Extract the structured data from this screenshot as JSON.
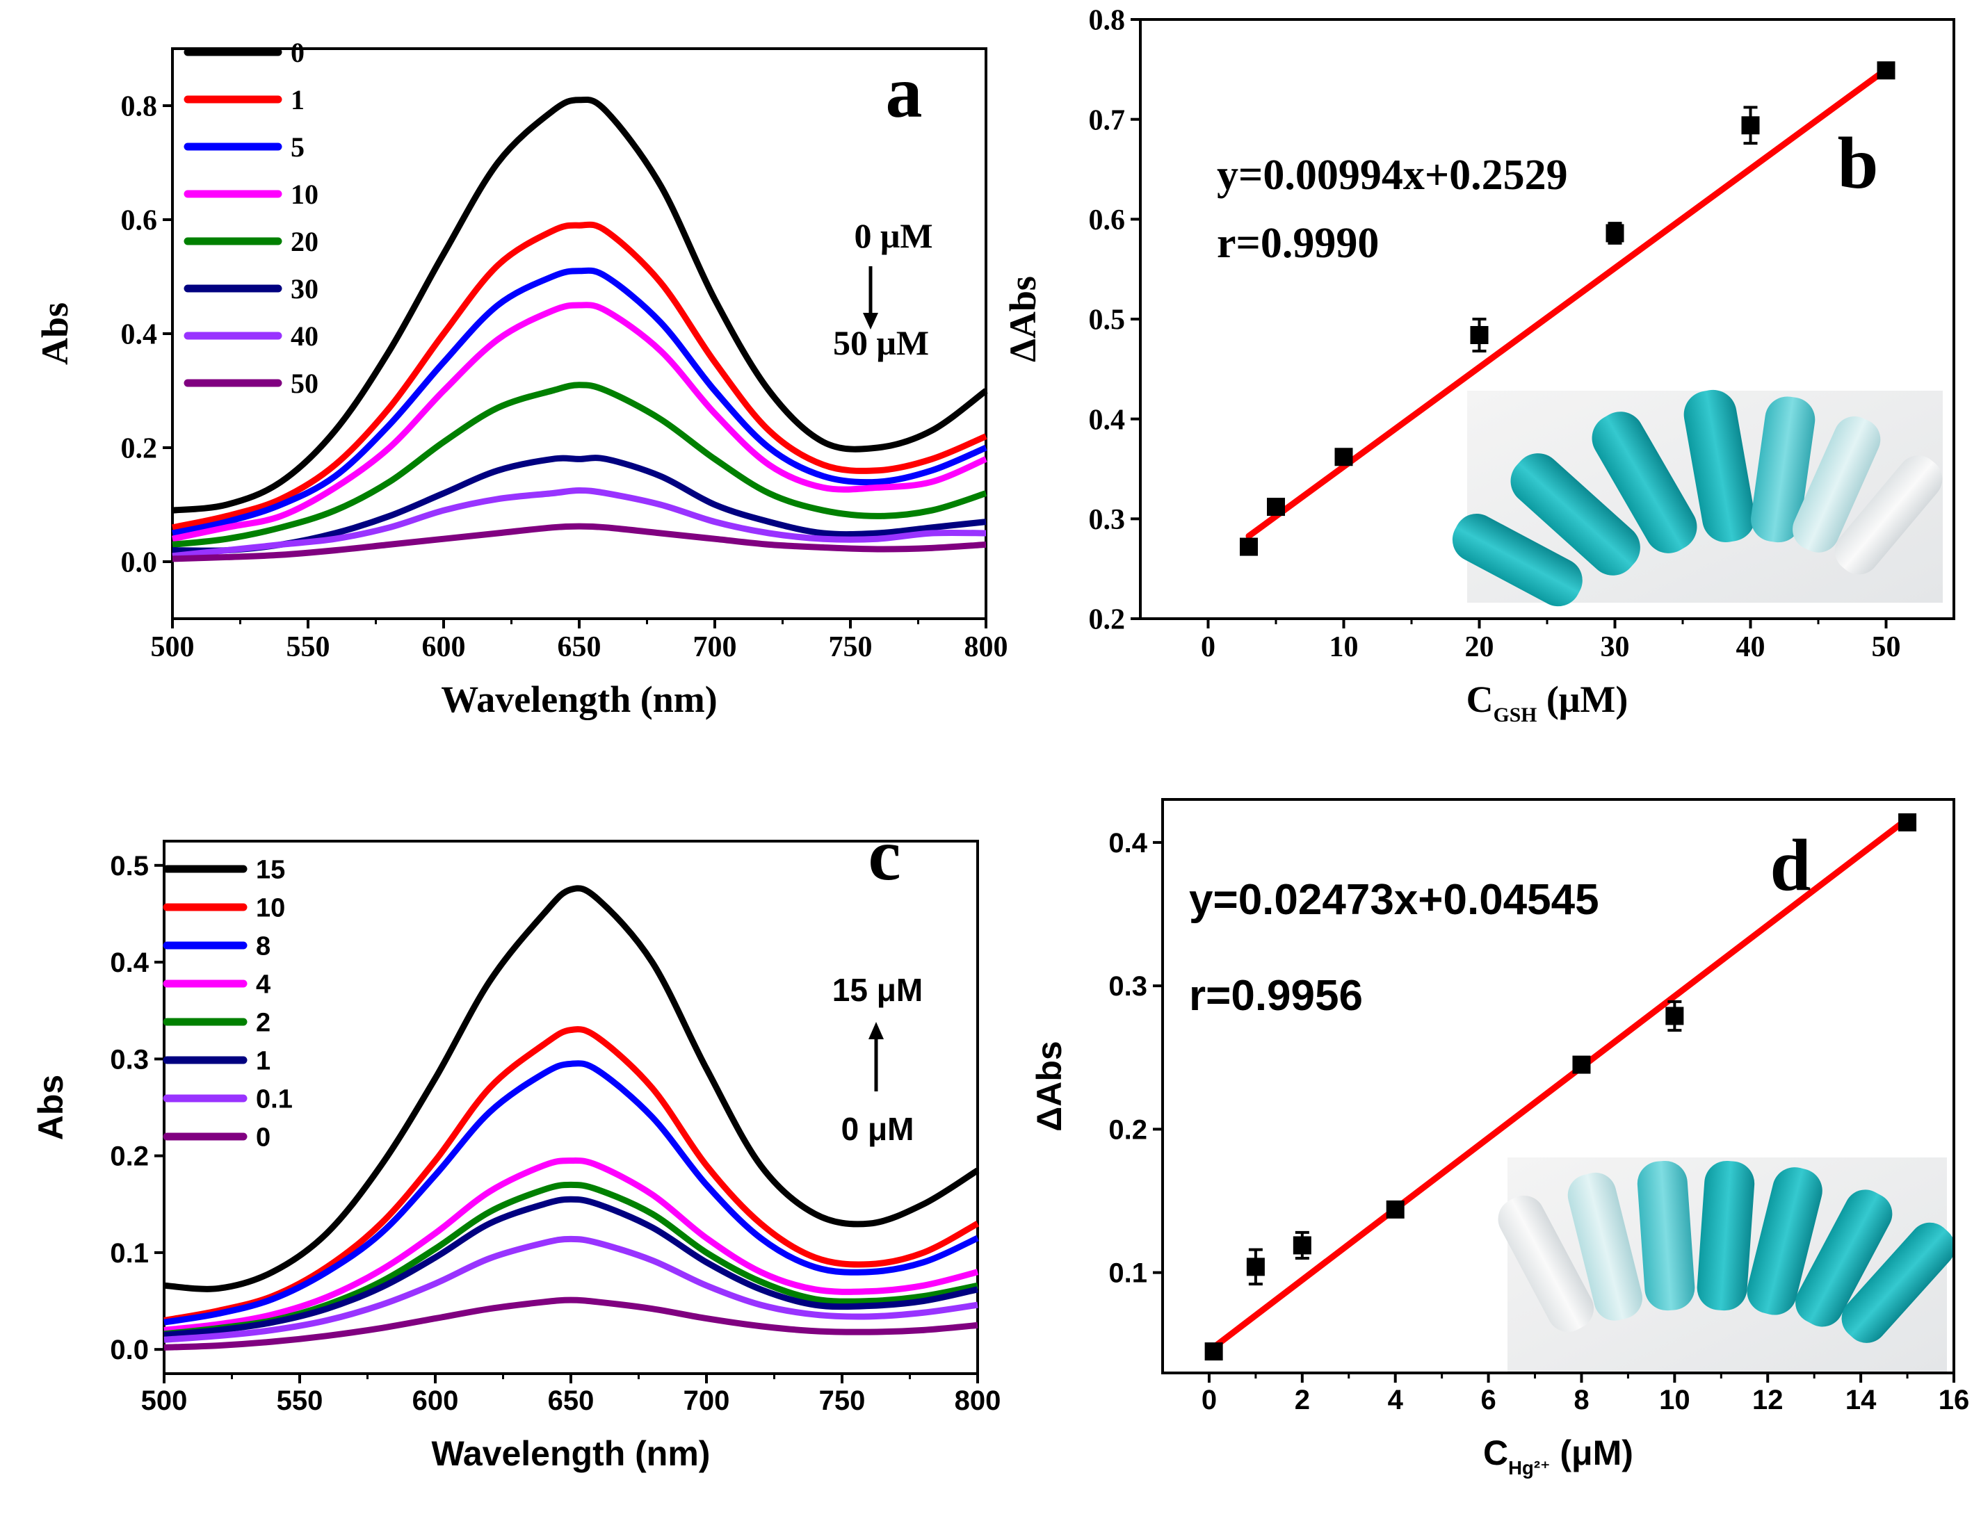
{
  "chart_data": [
    {
      "panel": "a",
      "type": "line",
      "xlabel": "Wavelength (nm)",
      "ylabel": "Abs",
      "xlim": [
        500,
        800
      ],
      "ylim": [
        -0.1,
        0.9
      ],
      "xticks": [
        "500",
        "550",
        "600",
        "650",
        "700",
        "750",
        "800"
      ],
      "yticks": [
        "0.0",
        "0.2",
        "0.4",
        "0.6",
        "0.8"
      ],
      "legend_position": "top-left",
      "annotation_top": "0 μM",
      "annotation_bottom": "50 μM",
      "arrow_direction": "down",
      "series": [
        {
          "name": "0",
          "color": "#000000",
          "x": [
            500,
            520,
            540,
            560,
            580,
            600,
            620,
            640,
            650,
            660,
            680,
            700,
            720,
            740,
            760,
            780,
            800
          ],
          "values": [
            0.09,
            0.1,
            0.14,
            0.23,
            0.37,
            0.54,
            0.7,
            0.79,
            0.81,
            0.79,
            0.66,
            0.46,
            0.3,
            0.21,
            0.2,
            0.23,
            0.3
          ]
        },
        {
          "name": "1",
          "color": "#ff0000",
          "x": [
            500,
            520,
            540,
            560,
            580,
            600,
            620,
            640,
            650,
            660,
            680,
            700,
            720,
            740,
            760,
            780,
            800
          ],
          "values": [
            0.06,
            0.08,
            0.11,
            0.17,
            0.27,
            0.4,
            0.52,
            0.58,
            0.59,
            0.58,
            0.49,
            0.35,
            0.23,
            0.17,
            0.16,
            0.18,
            0.22
          ]
        },
        {
          "name": "5",
          "color": "#0000ff",
          "x": [
            500,
            520,
            540,
            560,
            580,
            600,
            620,
            640,
            650,
            660,
            680,
            700,
            720,
            740,
            760,
            780,
            800
          ],
          "values": [
            0.05,
            0.07,
            0.1,
            0.15,
            0.24,
            0.35,
            0.45,
            0.5,
            0.51,
            0.5,
            0.42,
            0.3,
            0.2,
            0.15,
            0.14,
            0.16,
            0.2
          ]
        },
        {
          "name": "10",
          "color": "#ff00ff",
          "x": [
            500,
            520,
            540,
            560,
            580,
            600,
            620,
            640,
            650,
            660,
            680,
            700,
            720,
            740,
            760,
            780,
            800
          ],
          "values": [
            0.04,
            0.06,
            0.08,
            0.13,
            0.2,
            0.3,
            0.39,
            0.44,
            0.45,
            0.44,
            0.37,
            0.26,
            0.17,
            0.13,
            0.13,
            0.14,
            0.18
          ]
        },
        {
          "name": "20",
          "color": "#008000",
          "x": [
            500,
            520,
            540,
            560,
            580,
            600,
            620,
            640,
            650,
            660,
            680,
            700,
            720,
            740,
            760,
            780,
            800
          ],
          "values": [
            0.03,
            0.04,
            0.06,
            0.09,
            0.14,
            0.21,
            0.27,
            0.3,
            0.31,
            0.3,
            0.25,
            0.18,
            0.12,
            0.09,
            0.08,
            0.09,
            0.12
          ]
        },
        {
          "name": "30",
          "color": "#000080",
          "x": [
            500,
            520,
            540,
            560,
            580,
            600,
            620,
            640,
            650,
            660,
            680,
            700,
            720,
            740,
            760,
            780,
            800
          ],
          "values": [
            0.02,
            0.02,
            0.03,
            0.05,
            0.08,
            0.12,
            0.16,
            0.18,
            0.18,
            0.18,
            0.15,
            0.1,
            0.07,
            0.05,
            0.05,
            0.06,
            0.07
          ]
        },
        {
          "name": "40",
          "color": "#9933ff",
          "x": [
            500,
            520,
            540,
            560,
            580,
            600,
            620,
            640,
            650,
            660,
            680,
            700,
            720,
            740,
            760,
            780,
            800
          ],
          "values": [
            0.01,
            0.02,
            0.03,
            0.04,
            0.06,
            0.09,
            0.11,
            0.12,
            0.125,
            0.12,
            0.1,
            0.07,
            0.05,
            0.04,
            0.04,
            0.05,
            0.05
          ]
        },
        {
          "name": "50",
          "color": "#800080",
          "x": [
            500,
            520,
            540,
            560,
            580,
            600,
            620,
            640,
            650,
            660,
            680,
            700,
            720,
            740,
            760,
            780,
            800
          ],
          "values": [
            0.005,
            0.008,
            0.012,
            0.02,
            0.03,
            0.04,
            0.05,
            0.06,
            0.062,
            0.06,
            0.05,
            0.04,
            0.03,
            0.025,
            0.022,
            0.024,
            0.03
          ]
        }
      ]
    },
    {
      "panel": "b",
      "type": "scatter",
      "xlabel_main": "C",
      "xlabel_sub": "GSH",
      "xlabel_unit": " (μM)",
      "ylabel": "ΔAbs",
      "xlim": [
        -5,
        55
      ],
      "ylim": [
        0.2,
        0.8
      ],
      "xticks": [
        "0",
        "10",
        "20",
        "30",
        "40",
        "50"
      ],
      "yticks": [
        "0.2",
        "0.3",
        "0.4",
        "0.5",
        "0.6",
        "0.7",
        "0.8"
      ],
      "equation": "y=0.00994x+0.2529",
      "r_value": "r=0.9990",
      "fit": {
        "slope": 0.00994,
        "intercept": 0.2529,
        "x_range": [
          3,
          50
        ],
        "color": "#ff0000"
      },
      "points": {
        "x": [
          3,
          5,
          10,
          20,
          30,
          40,
          50
        ],
        "y": [
          0.272,
          0.312,
          0.362,
          0.484,
          0.586,
          0.694,
          0.749
        ],
        "err": [
          0.006,
          0.006,
          0.006,
          0.016,
          0.01,
          0.018,
          0.006
        ]
      },
      "inset": "photo-of-tubes"
    },
    {
      "panel": "c",
      "type": "line",
      "xlabel": "Wavelength (nm)",
      "ylabel": "Abs",
      "xlim": [
        500,
        800
      ],
      "ylim": [
        -0.025,
        0.525
      ],
      "xticks": [
        "500",
        "550",
        "600",
        "650",
        "700",
        "750",
        "800"
      ],
      "yticks": [
        "0.0",
        "0.1",
        "0.2",
        "0.3",
        "0.4",
        "0.5"
      ],
      "legend_position": "top-left",
      "annotation_top": "15 μM",
      "annotation_bottom": "0 μM",
      "arrow_direction": "up",
      "series": [
        {
          "name": "15",
          "color": "#000000",
          "x": [
            500,
            520,
            540,
            560,
            580,
            600,
            620,
            640,
            650,
            660,
            680,
            700,
            720,
            740,
            760,
            780,
            800
          ],
          "values": [
            0.066,
            0.063,
            0.08,
            0.12,
            0.19,
            0.28,
            0.38,
            0.45,
            0.475,
            0.465,
            0.4,
            0.29,
            0.19,
            0.14,
            0.13,
            0.15,
            0.185
          ]
        },
        {
          "name": "10",
          "color": "#ff0000",
          "x": [
            500,
            520,
            540,
            560,
            580,
            600,
            620,
            640,
            650,
            660,
            680,
            700,
            720,
            740,
            760,
            780,
            800
          ],
          "values": [
            0.03,
            0.04,
            0.055,
            0.085,
            0.13,
            0.195,
            0.27,
            0.315,
            0.33,
            0.322,
            0.27,
            0.19,
            0.13,
            0.095,
            0.088,
            0.1,
            0.13
          ]
        },
        {
          "name": "8",
          "color": "#0000ff",
          "x": [
            500,
            520,
            540,
            560,
            580,
            600,
            620,
            640,
            650,
            660,
            680,
            700,
            720,
            740,
            760,
            780,
            800
          ],
          "values": [
            0.028,
            0.037,
            0.052,
            0.08,
            0.12,
            0.18,
            0.245,
            0.285,
            0.295,
            0.288,
            0.24,
            0.17,
            0.115,
            0.085,
            0.08,
            0.09,
            0.115
          ]
        },
        {
          "name": "4",
          "color": "#ff00ff",
          "x": [
            500,
            520,
            540,
            560,
            580,
            600,
            620,
            640,
            650,
            660,
            680,
            700,
            720,
            740,
            760,
            780,
            800
          ],
          "values": [
            0.02,
            0.026,
            0.036,
            0.054,
            0.082,
            0.12,
            0.163,
            0.19,
            0.195,
            0.19,
            0.16,
            0.115,
            0.08,
            0.062,
            0.06,
            0.066,
            0.08
          ]
        },
        {
          "name": "2",
          "color": "#008000",
          "x": [
            500,
            520,
            540,
            560,
            580,
            600,
            620,
            640,
            650,
            660,
            680,
            700,
            720,
            740,
            760,
            780,
            800
          ],
          "values": [
            0.016,
            0.022,
            0.03,
            0.046,
            0.07,
            0.104,
            0.142,
            0.165,
            0.17,
            0.165,
            0.14,
            0.1,
            0.07,
            0.052,
            0.05,
            0.055,
            0.066
          ]
        },
        {
          "name": "1",
          "color": "#000080",
          "x": [
            500,
            520,
            540,
            560,
            580,
            600,
            620,
            640,
            650,
            660,
            680,
            700,
            720,
            740,
            760,
            780,
            800
          ],
          "values": [
            0.015,
            0.02,
            0.028,
            0.042,
            0.064,
            0.095,
            0.13,
            0.15,
            0.155,
            0.15,
            0.126,
            0.09,
            0.062,
            0.046,
            0.045,
            0.05,
            0.062
          ]
        },
        {
          "name": "0.1",
          "color": "#9933ff",
          "x": [
            500,
            520,
            540,
            560,
            580,
            600,
            620,
            640,
            650,
            660,
            680,
            700,
            720,
            740,
            760,
            780,
            800
          ],
          "values": [
            0.01,
            0.014,
            0.02,
            0.03,
            0.046,
            0.068,
            0.094,
            0.11,
            0.114,
            0.11,
            0.092,
            0.066,
            0.046,
            0.036,
            0.034,
            0.038,
            0.046
          ]
        },
        {
          "name": "0",
          "color": "#800080",
          "x": [
            500,
            520,
            540,
            560,
            580,
            600,
            620,
            640,
            650,
            660,
            680,
            700,
            720,
            740,
            760,
            780,
            800
          ],
          "values": [
            0.002,
            0.004,
            0.008,
            0.014,
            0.022,
            0.032,
            0.042,
            0.049,
            0.051,
            0.049,
            0.042,
            0.032,
            0.024,
            0.019,
            0.018,
            0.02,
            0.025
          ]
        }
      ]
    },
    {
      "panel": "d",
      "type": "scatter",
      "xlabel_main": "C",
      "xlabel_sub": "Hg²⁺",
      "xlabel_unit": " (μM)",
      "ylabel": "ΔAbs",
      "xlim": [
        -1,
        16
      ],
      "ylim": [
        0.03,
        0.43
      ],
      "xticks": [
        "0",
        "2",
        "4",
        "6",
        "8",
        "10",
        "12",
        "14",
        "16"
      ],
      "yticks": [
        "0.1",
        "0.2",
        "0.3",
        "0.4"
      ],
      "equation": "y=0.02473x+0.04545",
      "r_value": "r=0.9956",
      "fit": {
        "slope": 0.02473,
        "intercept": 0.04545,
        "x_range": [
          0.1,
          15
        ],
        "color": "#ff0000"
      },
      "points": {
        "x": [
          0.1,
          1,
          2,
          4,
          8,
          10,
          15
        ],
        "y": [
          0.045,
          0.104,
          0.119,
          0.144,
          0.245,
          0.279,
          0.414
        ],
        "err": [
          0.004,
          0.012,
          0.009,
          0.004,
          0.005,
          0.01,
          0.004
        ]
      },
      "inset": "photo-of-tubes"
    }
  ],
  "panel_letters": {
    "a": "a",
    "b": "b",
    "c": "c",
    "d": "d"
  }
}
